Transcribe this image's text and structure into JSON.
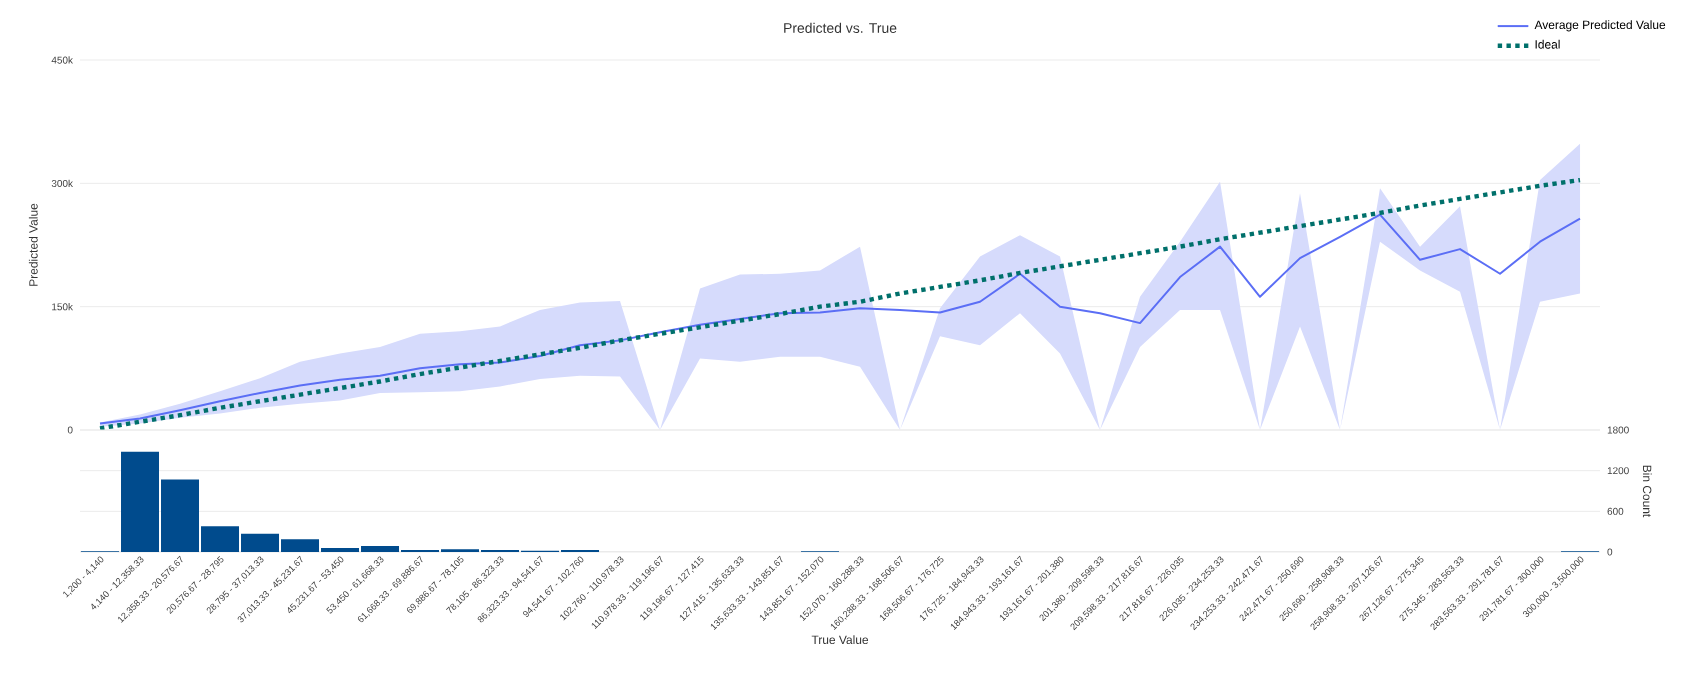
{
  "chart_data": [
    {
      "type": "line",
      "title": "Predicted vs. True",
      "ylabel": "Predicted Value",
      "legend": "top right",
      "grid": "y",
      "tick_labels": "y",
      "ylim": [
        0,
        450000
      ],
      "yticks": [
        0,
        {
          "value": 150000,
          "label": "150k"
        },
        {
          "value": 300000,
          "label": "300k"
        },
        {
          "value": 450000,
          "label": "450k"
        }
      ],
      "series": [
        {
          "name": "Average Predicted Value",
          "type": "line",
          "color": "#5b6ef5",
          "line_style": "solid",
          "values": [
            8000,
            14000,
            24000,
            35000,
            45000,
            54000,
            61000,
            66000,
            75000,
            80000,
            82000,
            90000,
            103000,
            109000,
            119000,
            128000,
            135000,
            142000,
            143000,
            148000,
            146000,
            143000,
            156000,
            190000,
            150000,
            142000,
            130000,
            186000,
            223000,
            162000,
            209000,
            235000,
            262000,
            207000,
            220000,
            190000,
            229000,
            257000
          ],
          "upper": [
            9000,
            19000,
            32000,
            47000,
            63000,
            83000,
            93000,
            101000,
            117000,
            120000,
            126000,
            146000,
            155000,
            157000,
            0,
            172000,
            189000,
            190000,
            194000,
            223000,
            0,
            148000,
            211000,
            237000,
            211000,
            0,
            162000,
            229000,
            302000,
            0,
            288000,
            0,
            294000,
            223000,
            272000,
            0,
            304000,
            348000
          ],
          "lower": [
            4000,
            8000,
            15000,
            20000,
            27000,
            32000,
            36000,
            45000,
            46000,
            47000,
            53000,
            62000,
            66000,
            65000,
            0,
            87000,
            83000,
            89000,
            89000,
            77000,
            0,
            114000,
            103000,
            142000,
            93000,
            0,
            101000,
            146000,
            146000,
            0,
            126000,
            0,
            229000,
            194000,
            168000,
            0,
            156000,
            166000
          ]
        },
        {
          "name": "Ideal",
          "type": "line",
          "color": "#00706b",
          "line_style": "dotted",
          "values": [
            2000,
            10000,
            18000,
            27000,
            35000,
            43000,
            51000,
            59000,
            68000,
            76000,
            84000,
            92000,
            100000,
            109000,
            117000,
            125000,
            133000,
            141000,
            150000,
            156000,
            166000,
            174000,
            182000,
            191000,
            199000,
            207000,
            215000,
            223000,
            232000,
            240000,
            248000,
            256000,
            264000,
            273000,
            281000,
            289000,
            297000,
            304000
          ]
        }
      ]
    },
    {
      "type": "bar",
      "xlabel": "True Value",
      "y2label": "Bin Count",
      "grid": "y",
      "categories": [
        "1,200 - 4,140",
        "4,140 - 12,358.33",
        "12,358.33 - 20,576.67",
        "20,576.67 - 28,795",
        "28,795 - 37,013.33",
        "37,013.33 - 45,231.67",
        "45,231.67 - 53,450",
        "53,450 - 61,668.33",
        "61,668.33 - 69,886.67",
        "69,886.67 - 78,105",
        "78,105 - 86,323.33",
        "86,323.33 - 94,541.67",
        "94,541.67 - 102,760",
        "102,760 - 110,978.33",
        "110,978.33 - 119,196.67",
        "119,196.67 - 127,415",
        "127,415 - 135,633.33",
        "135,633.33 - 143,851.67",
        "143,851.67 - 152,070",
        "152,070 - 160,288.33",
        "160,288.33 - 168,506.67",
        "168,506.67 - 176,725",
        "176,725 - 184,943.33",
        "184,943.33 - 193,161.67",
        "193,161.67 - 201,380",
        "201,380 - 209,598.33",
        "209,598.33 - 217,816.67",
        "217,816.67 - 226,035",
        "226,035 - 234,253.33",
        "234,253.33 - 242,471.67",
        "242,471.67 - 250,690",
        "250,690 - 258,908.33",
        "258,908.33 - 267,126.67",
        "267,126.67 - 275,345",
        "275,345 - 283,563.33",
        "283,563.33 - 291,781.67",
        "291,781.67 - 300,000",
        "300,000 - 3,500,000"
      ],
      "y2lim": [
        0,
        1800
      ],
      "y2ticks": [
        0,
        600,
        1200,
        1800
      ],
      "series": [
        {
          "axis": "y2",
          "color": "#004b8d",
          "values": [
            10,
            1480,
            1070,
            380,
            270,
            190,
            60,
            90,
            30,
            40,
            30,
            20,
            30,
            0,
            0,
            0,
            0,
            0,
            10,
            0,
            0,
            0,
            0,
            0,
            0,
            0,
            0,
            0,
            0,
            0,
            0,
            0,
            0,
            0,
            0,
            0,
            0,
            10
          ]
        }
      ]
    }
  ]
}
